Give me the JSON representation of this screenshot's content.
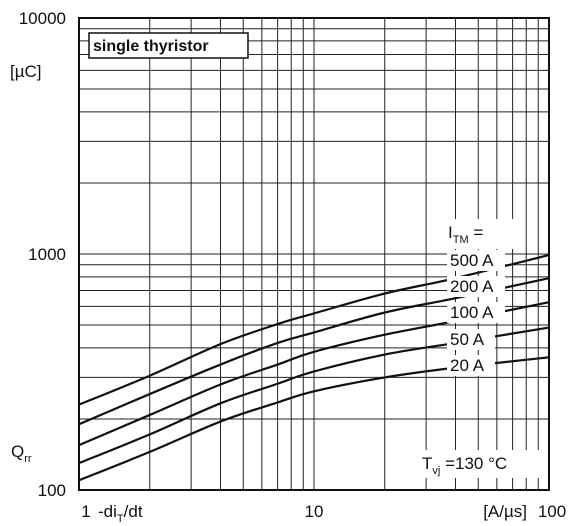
{
  "chart_data": {
    "type": "line",
    "title": "single thyristor",
    "xlabel": "-di_T/dt",
    "xunit": "[A/µs]",
    "ylabel": "Q_rr",
    "yunit": "[µC]",
    "x_scale": "log",
    "y_scale": "log",
    "xlim": [
      1,
      100
    ],
    "ylim": [
      100,
      10000
    ],
    "x_tick_labels": [
      "1",
      "10",
      "100"
    ],
    "y_tick_labels": [
      "100",
      "1000",
      "10000"
    ],
    "grid": true,
    "legend_header": "I_TM =",
    "condition": "T_vj =130 °C",
    "series": [
      {
        "name": "500 A",
        "x": [
          1,
          2,
          4,
          7,
          10,
          20,
          40,
          100
        ],
        "y": [
          230,
          305,
          415,
          505,
          560,
          680,
          790,
          990
        ]
      },
      {
        "name": "200 A",
        "x": [
          1,
          2,
          4,
          7,
          10,
          20,
          40,
          100
        ],
        "y": [
          190,
          255,
          340,
          420,
          465,
          565,
          650,
          790
        ]
      },
      {
        "name": "100 A",
        "x": [
          1,
          2,
          4,
          7,
          10,
          20,
          40,
          100
        ],
        "y": [
          155,
          208,
          280,
          340,
          385,
          455,
          520,
          625
        ]
      },
      {
        "name": "50 A",
        "x": [
          1,
          2,
          4,
          7,
          10,
          20,
          40,
          100
        ],
        "y": [
          130,
          172,
          233,
          282,
          318,
          375,
          420,
          488
        ]
      },
      {
        "name": "20 A",
        "x": [
          1,
          2,
          4,
          7,
          10,
          20,
          40,
          100
        ],
        "y": [
          110,
          145,
          195,
          235,
          262,
          300,
          330,
          365
        ]
      }
    ]
  }
}
